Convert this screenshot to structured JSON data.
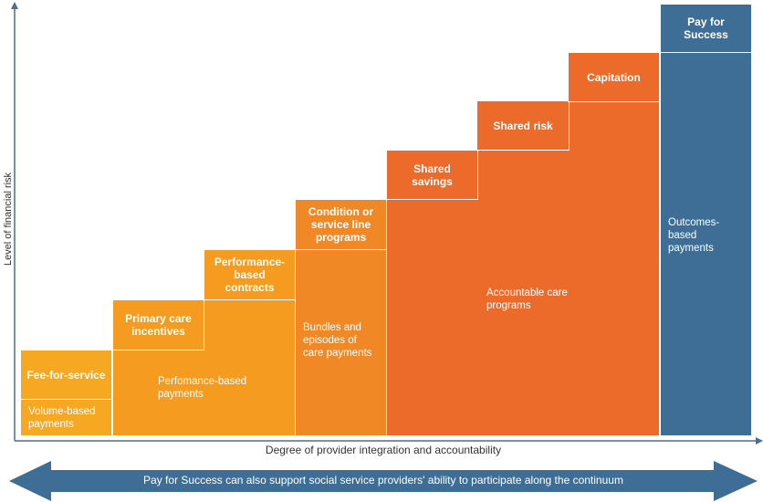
{
  "y_axis_label": "Level of financial risk",
  "x_axis_label": "Degree of provider integration and accountability",
  "arrow_text": "Pay for Success can also support social service providers' ability to participate along the continuum",
  "steps": [
    "Fee-for-service",
    "Primary care incentives",
    "Performance-based contracts",
    "Condition or service line programs",
    "Shared savings",
    "Shared risk",
    "Capitation",
    "Pay for Success"
  ],
  "payments": [
    "Volume-based payments",
    "Perfomance-based payments",
    "Bundles and episodes of care payments",
    "Accountable care programs",
    "Outcomes-based payments"
  ]
}
